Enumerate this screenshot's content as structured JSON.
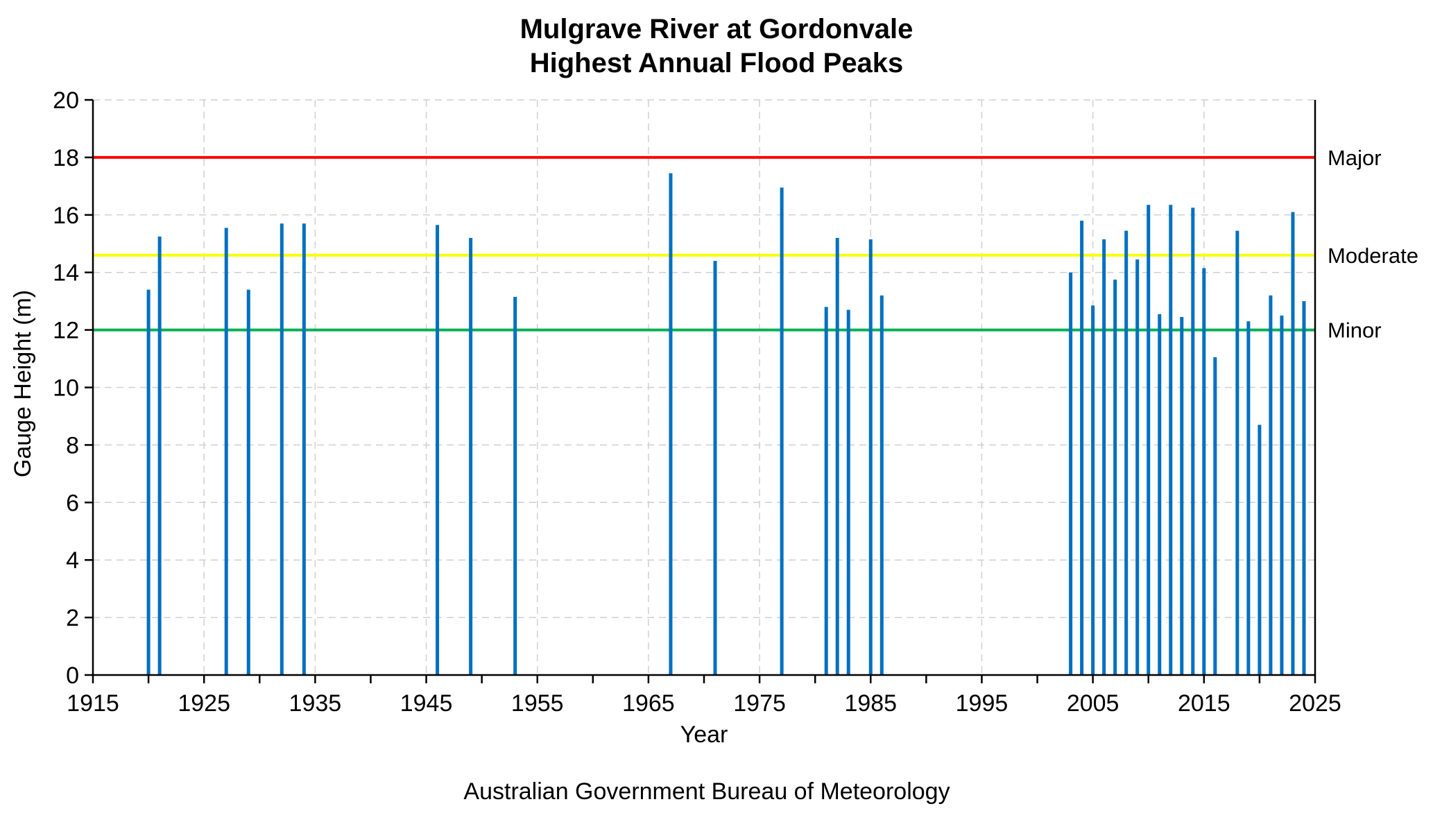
{
  "chart_data": {
    "type": "bar",
    "title": "Mulgrave River at Gordonvale",
    "subtitle": "Highest Annual Flood Peaks",
    "xlabel": "Year",
    "ylabel": "Gauge Height (m)",
    "xlim": [
      1915,
      2025
    ],
    "ylim": [
      0,
      20
    ],
    "x_ticks": [
      1915,
      1925,
      1935,
      1945,
      1955,
      1965,
      1975,
      1985,
      1995,
      2005,
      2015,
      2025
    ],
    "y_ticks": [
      0,
      2,
      4,
      6,
      8,
      10,
      12,
      14,
      16,
      18,
      20
    ],
    "grid": true,
    "bar_color": "#0070C0",
    "levels": [
      {
        "name": "Major",
        "value": 18.0,
        "color": "#FF0000"
      },
      {
        "name": "Moderate",
        "value": 14.6,
        "color": "#FFFF00"
      },
      {
        "name": "Minor",
        "value": 12.0,
        "color": "#00B050"
      }
    ],
    "x": [
      1920,
      1921,
      1927,
      1929,
      1932,
      1934,
      1946,
      1949,
      1953,
      1967,
      1971,
      1977,
      1981,
      1982,
      1983,
      1985,
      1986,
      2003,
      2004,
      2005,
      2006,
      2007,
      2008,
      2009,
      2010,
      2011,
      2012,
      2013,
      2014,
      2015,
      2016,
      2018,
      2019,
      2020,
      2021,
      2022,
      2023,
      2024
    ],
    "values": [
      13.4,
      15.25,
      15.55,
      13.4,
      15.7,
      15.7,
      15.65,
      15.2,
      13.15,
      17.45,
      14.4,
      16.95,
      12.8,
      15.2,
      12.7,
      15.15,
      13.2,
      14.0,
      15.8,
      12.85,
      15.15,
      13.75,
      15.45,
      14.45,
      16.35,
      12.55,
      16.35,
      12.45,
      16.25,
      14.15,
      11.05,
      15.45,
      12.3,
      8.7,
      13.2,
      12.5,
      16.1,
      13.0
    ]
  },
  "footer": "Australian Government Bureau of Meteorology"
}
